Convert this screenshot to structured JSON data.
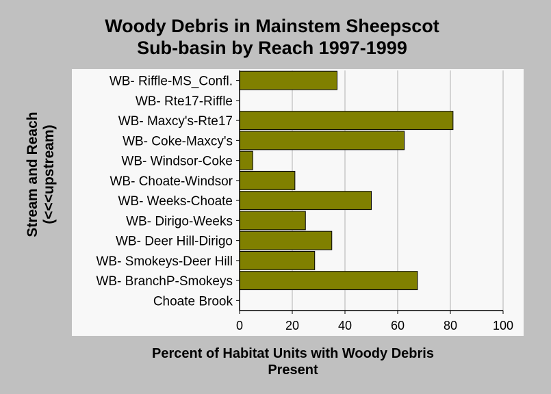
{
  "chart_data": {
    "type": "bar",
    "orientation": "horizontal",
    "title_lines": [
      "Woody Debris in Mainstem Sheepscot",
      "Sub-basin by Reach 1997-1999"
    ],
    "ylabel_lines": [
      "Stream and Reach",
      "(<<<upstream)"
    ],
    "xlabel_lines": [
      "Percent of Habitat Units with Woody Debris",
      "Present"
    ],
    "categories": [
      "WB- Riffle-MS_Confl.",
      "WB- Rte17-Riffle",
      "WB- Maxcy's-Rte17",
      "WB- Coke-Maxcy's",
      "WB- Windsor-Coke",
      "WB- Choate-Windsor",
      "WB- Weeks-Choate",
      "WB- Dirigo-Weeks",
      "WB- Deer Hill-Dirigo",
      "WB- Smokeys-Deer Hill",
      "WB- BranchP-Smokeys",
      "Choate Brook"
    ],
    "values": [
      37,
      0,
      81,
      62.5,
      5,
      21,
      50,
      25,
      35,
      28.5,
      67.5,
      0
    ],
    "xlim": [
      0,
      100
    ],
    "xticks": [
      "0",
      "20",
      "40",
      "60",
      "80",
      "100"
    ],
    "grid": "vertical",
    "colors": {
      "bar": "#808000",
      "plot_bg": "#f8f8f8",
      "page_bg": "#c0c0c0",
      "grid": "#c8c8c8"
    }
  }
}
